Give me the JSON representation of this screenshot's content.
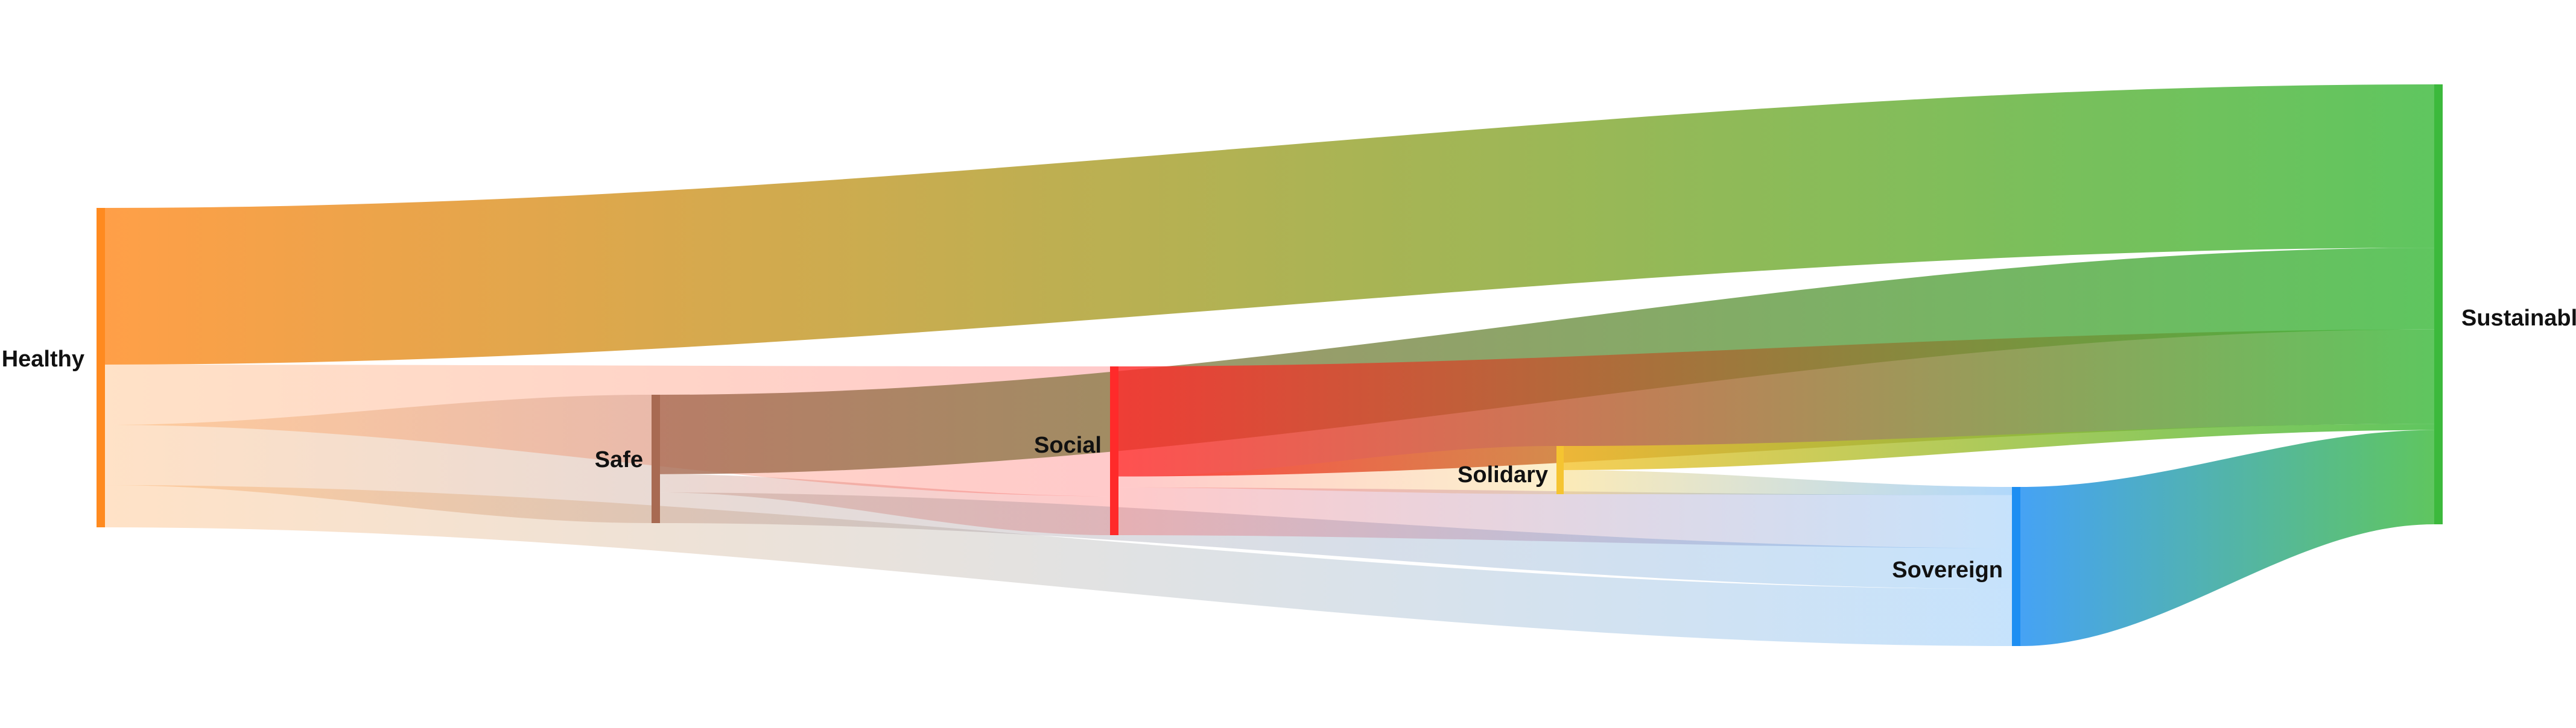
{
  "chart_data": {
    "type": "sankey",
    "nodes": [
      {
        "id": "healthy",
        "label": "Healthy",
        "color": "#ff8a1f"
      },
      {
        "id": "safe",
        "label": "Safe",
        "color": "#a86a52"
      },
      {
        "id": "social",
        "label": "Social",
        "color": "#ff2a2a"
      },
      {
        "id": "solidary",
        "label": "Solidary",
        "color": "#f5c431"
      },
      {
        "id": "sovereign",
        "label": "Sovereign",
        "color": "#1d8ef2"
      },
      {
        "id": "sustainable",
        "label": "Sustainable",
        "color": "#3cb93c"
      }
    ],
    "links": [
      {
        "source": "healthy",
        "target": "sustainable",
        "value": 26
      },
      {
        "source": "healthy",
        "target": "social",
        "value": 10
      },
      {
        "source": "healthy",
        "target": "safe",
        "value": 10
      },
      {
        "source": "healthy",
        "target": "sovereign",
        "value": 7
      },
      {
        "source": "safe",
        "target": "sustainable",
        "value": 13
      },
      {
        "source": "safe",
        "target": "social",
        "value": 3
      },
      {
        "source": "safe",
        "target": "sovereign",
        "value": 5
      },
      {
        "source": "social",
        "target": "sustainable",
        "value": 15
      },
      {
        "source": "social",
        "target": "solidary",
        "value": 1.5
      },
      {
        "source": "social",
        "target": "sovereign",
        "value": 6.5
      },
      {
        "source": "solidary",
        "target": "sustainable",
        "value": 1
      },
      {
        "source": "solidary",
        "target": "sovereign",
        "value": 1
      },
      {
        "source": "sovereign",
        "target": "sustainable",
        "value": 15
      }
    ]
  }
}
